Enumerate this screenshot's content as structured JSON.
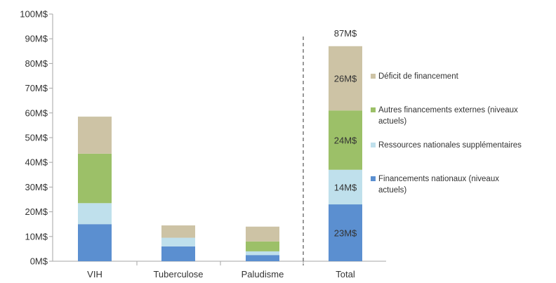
{
  "chart_data": {
    "type": "bar",
    "stacked": true,
    "categories": [
      "VIH",
      "Tuberculose",
      "Paludisme",
      "Total"
    ],
    "series": [
      {
        "name": "Financements nationaux (niveaux actuels)",
        "values": [
          15,
          6,
          2.5,
          23
        ],
        "color": "#5b8fd0"
      },
      {
        "name": "Ressources nationales supplémentaires",
        "values": [
          8.5,
          3.5,
          1.5,
          14
        ],
        "color": "#bfe0ec"
      },
      {
        "name": "Autres financements externes (niveaux actuels)",
        "values": [
          20,
          0,
          4,
          24
        ],
        "color": "#9cc068"
      },
      {
        "name": "Déficit de financement",
        "values": [
          15,
          5,
          6,
          26
        ],
        "color": "#cdc3a5"
      }
    ],
    "data_labels_total_bar": [
      "23M$",
      "14M$",
      "24M$",
      "26M$"
    ],
    "total_label": "87M$",
    "yticks": [
      "0M$",
      "10M$",
      "20M$",
      "30M$",
      "40M$",
      "50M$",
      "60M$",
      "70M$",
      "80M$",
      "90M$",
      "100M$"
    ],
    "ylim": [
      0,
      100
    ],
    "grid": false,
    "legend_position": "right",
    "title": "",
    "xlabel": "",
    "ylabel": ""
  },
  "legend": {
    "items": [
      {
        "lines": [
          "Déficit de financement"
        ],
        "color": "#cdc3a5"
      },
      {
        "lines": [
          "Autres financements externes (niveaux",
          "actuels)"
        ],
        "color": "#9cc068"
      },
      {
        "lines": [
          "Ressources nationales supplémentaires"
        ],
        "color": "#bfe0ec"
      },
      {
        "lines": [
          "Financements nationaux (niveaux",
          "actuels)"
        ],
        "color": "#5b8fd0"
      }
    ]
  }
}
